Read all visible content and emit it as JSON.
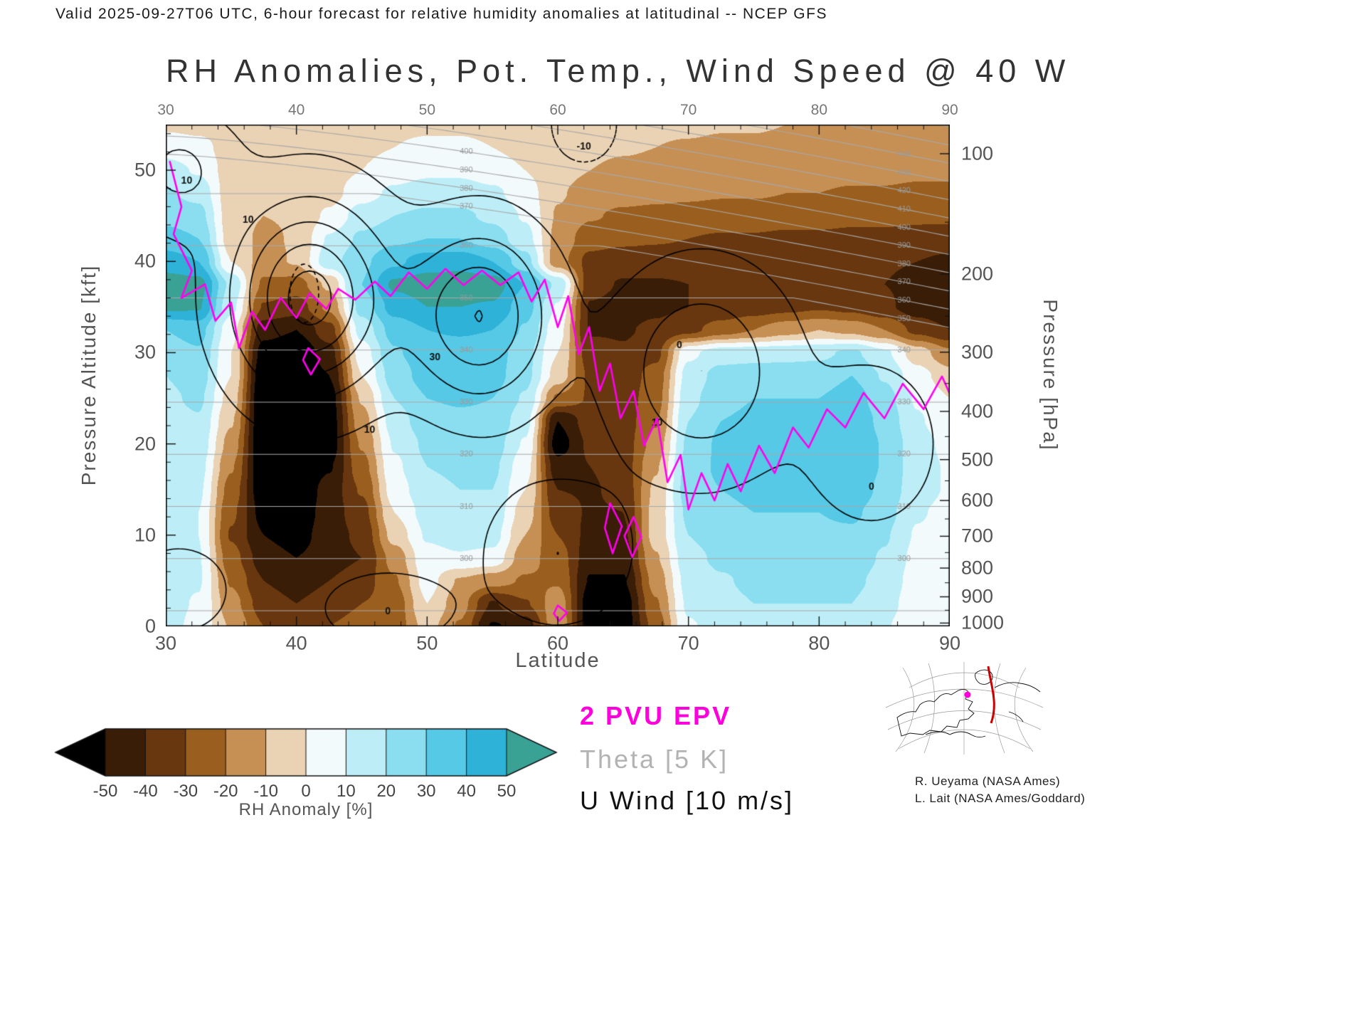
{
  "header": {
    "text": "Valid 2025-09-27T06 UTC, 6-hour forecast for relative humidity anomalies at latitudinal -- NCEP GFS"
  },
  "title": "RH Anomalies, Pot. Temp., Wind Speed @ 40 W",
  "axes": {
    "x": {
      "label": "Latitude",
      "min": 30,
      "max": 90,
      "major": [
        30,
        40,
        50,
        60,
        70,
        80,
        90
      ],
      "minor_step": 2
    },
    "y_left": {
      "label": "Pressure Altitude [kft]",
      "min": 0,
      "max": 55,
      "major": [
        0,
        10,
        20,
        30,
        40,
        50
      ],
      "minor_step": 2
    },
    "y_right": {
      "label": "Pressure [hPa]",
      "major": [
        100,
        200,
        300,
        400,
        500,
        600,
        700,
        800,
        900,
        1000
      ],
      "minor": [
        150,
        250,
        350,
        450,
        550,
        650,
        750,
        850,
        950
      ]
    }
  },
  "legend": [
    {
      "text": "2 PVU EPV",
      "color": "#ff00dd"
    },
    {
      "text": "Theta [5 K]",
      "color": "#b3b3b3"
    },
    {
      "text": "U Wind [10 m/s]",
      "color": "#111111"
    }
  ],
  "colorbar": {
    "title": "RH Anomaly [%]",
    "ticks": [
      -50,
      -40,
      -30,
      -20,
      -10,
      0,
      10,
      20,
      30,
      40,
      50
    ],
    "band_colors": [
      "#3a1d07",
      "#68370f",
      "#9a5f1e",
      "#c69055",
      "#ead2b4",
      "#f2fafc",
      "#bdeef7",
      "#8adef0",
      "#55c9e6",
      "#2eb2d8"
    ],
    "under_color": "#000000",
    "over_color": "#3aa195"
  },
  "credits": [
    "R. Ueyama (NASA Ames)",
    "L. Lait (NASA Ames/Goddard)"
  ],
  "inset_map": {
    "track_color": "#cc0000",
    "marker_color": "#ff00dd"
  },
  "chart_data": {
    "type": "heatmap",
    "title": "RH anomaly cross-section at 40 W",
    "x_lats": [
      30,
      32.5,
      35,
      37.5,
      40,
      42.5,
      45,
      47.5,
      50,
      52.5,
      55,
      57.5,
      60,
      62.5,
      65,
      67.5,
      70,
      72.5,
      75,
      77.5,
      80,
      82.5,
      85,
      87.5,
      90
    ],
    "y_kft": [
      55,
      52.5,
      50,
      47.5,
      45,
      42.5,
      40,
      37.5,
      35,
      32.5,
      30,
      27.5,
      25,
      22.5,
      20,
      17.5,
      15,
      12.5,
      10,
      7.5,
      5,
      2.5,
      0
    ],
    "rows_top_to_bottom": true,
    "value_units": "percent RH anomaly",
    "value_range_shown": [
      -50,
      50
    ],
    "rh_anomaly_grid": [
      [
        -2,
        -3,
        -4,
        -4,
        -4,
        -3,
        -3,
        -2,
        -2,
        -2,
        -3,
        -4,
        -5,
        -6,
        -7,
        -8,
        -8,
        -9,
        -9,
        -10,
        -10,
        -11,
        -11,
        -12,
        -12
      ],
      [
        6,
        3,
        -4,
        -5,
        -5,
        -4,
        -2,
        0,
        2,
        2,
        0,
        -3,
        -6,
        -8,
        -9,
        -10,
        -11,
        -12,
        -12,
        -13,
        -13,
        -14,
        -14,
        -15,
        -15
      ],
      [
        14,
        9,
        -5,
        -6,
        -6,
        -4,
        0,
        5,
        8,
        8,
        5,
        0,
        -7,
        -10,
        -12,
        -13,
        -14,
        -15,
        -15,
        -16,
        -16,
        -17,
        -17,
        -18,
        -18
      ],
      [
        21,
        17,
        -6,
        -8,
        -8,
        -4,
        6,
        12,
        15,
        15,
        12,
        5,
        -9,
        -14,
        -16,
        -17,
        -18,
        -19,
        -19,
        -20,
        -20,
        -21,
        -21,
        -22,
        -22
      ],
      [
        27,
        24,
        -6,
        -10,
        -9,
        2,
        15,
        20,
        22,
        22,
        18,
        9,
        -11,
        -19,
        -22,
        -23,
        -24,
        -25,
        -25,
        -26,
        -26,
        -27,
        -27,
        -28,
        -28
      ],
      [
        34,
        30,
        -5,
        -12,
        -9,
        11,
        22,
        28,
        30,
        30,
        25,
        14,
        -13,
        -26,
        -28,
        -29,
        -30,
        -31,
        -31,
        -32,
        -32,
        -33,
        -33,
        -34,
        -35
      ],
      [
        45,
        40,
        0,
        -14,
        -9,
        16,
        28,
        38,
        45,
        46,
        40,
        24,
        -16,
        -33,
        -35,
        -35,
        -36,
        -36,
        -37,
        -37,
        -38,
        -38,
        -39,
        -40,
        -42
      ],
      [
        55,
        54,
        18,
        -22,
        -24,
        -8,
        30,
        52,
        55,
        56,
        55,
        40,
        18,
        -36,
        -41,
        -41,
        -40,
        -38,
        -36,
        -35,
        -35,
        -37,
        -40,
        -43,
        -46
      ],
      [
        52,
        51,
        13,
        -31,
        -35,
        -18,
        24,
        44,
        50,
        50,
        49,
        34,
        9,
        -41,
        -44,
        -42,
        -40,
        -38,
        -35,
        -33,
        -31,
        -33,
        -38,
        -45,
        -50
      ],
      [
        30,
        34,
        4,
        -46,
        -50,
        -34,
        14,
        34,
        40,
        41,
        40,
        29,
        4,
        -41,
        -41,
        -38,
        -33,
        -25,
        -20,
        -14,
        -10,
        -13,
        -20,
        -33,
        -40
      ],
      [
        25,
        29,
        0,
        -55,
        -60,
        -44,
        5,
        29,
        35,
        36,
        35,
        24,
        0,
        -36,
        -39,
        -33,
        8,
        15,
        16,
        17,
        18,
        22,
        12,
        -5,
        -18
      ],
      [
        20,
        25,
        0,
        -60,
        -62,
        -50,
        0,
        25,
        34,
        35,
        34,
        23,
        -4,
        -32,
        -36,
        -26,
        14,
        24,
        25,
        25,
        25,
        30,
        19,
        4,
        -6
      ],
      [
        18,
        22,
        -4,
        -62,
        -62,
        -55,
        -9,
        20,
        30,
        31,
        30,
        19,
        -22,
        -31,
        -35,
        -24,
        17,
        27,
        30,
        30,
        30,
        35,
        24,
        9,
        0
      ],
      [
        15,
        19,
        -9,
        -62,
        -62,
        -56,
        -14,
        15,
        26,
        28,
        28,
        14,
        -50,
        -35,
        -35,
        -21,
        20,
        30,
        32,
        32,
        32,
        38,
        27,
        11,
        4
      ],
      [
        15,
        17,
        -14,
        -62,
        -62,
        -56,
        -19,
        11,
        22,
        25,
        25,
        9,
        -55,
        -38,
        -35,
        -16,
        22,
        32,
        35,
        35,
        35,
        40,
        29,
        14,
        7
      ],
      [
        12,
        14,
        -19,
        -60,
        -62,
        -51,
        -24,
        8,
        20,
        22,
        22,
        4,
        -46,
        -40,
        -35,
        -11,
        24,
        32,
        35,
        35,
        35,
        40,
        29,
        14,
        9
      ],
      [
        10,
        12,
        -24,
        -58,
        -60,
        -46,
        -29,
        5,
        17,
        20,
        20,
        0,
        -40,
        -41,
        -37,
        -8,
        25,
        30,
        32,
        33,
        32,
        38,
        27,
        14,
        9
      ],
      [
        10,
        10,
        -28,
        -54,
        -58,
        -45,
        -34,
        0,
        14,
        17,
        17,
        -5,
        -35,
        -41,
        -40,
        -6,
        22,
        28,
        30,
        30,
        30,
        32,
        24,
        11,
        7
      ],
      [
        10,
        10,
        -31,
        -50,
        -55,
        -44,
        -38,
        -6,
        11,
        14,
        14,
        -10,
        -30,
        -43,
        -42,
        -6,
        20,
        25,
        28,
        28,
        28,
        28,
        21,
        9,
        4
      ],
      [
        12,
        11,
        -26,
        -45,
        -50,
        -44,
        -40,
        -16,
        7,
        9,
        7,
        -16,
        -25,
        -46,
        -46,
        -11,
        17,
        22,
        25,
        25,
        25,
        25,
        19,
        7,
        4
      ],
      [
        14,
        11,
        -21,
        -40,
        -45,
        -40,
        -35,
        -21,
        4,
        -11,
        -16,
        -21,
        -21,
        -51,
        -51,
        -16,
        14,
        19,
        22,
        22,
        22,
        22,
        17,
        5,
        2
      ],
      [
        14,
        9,
        -16,
        -35,
        -40,
        -35,
        -30,
        -26,
        0,
        -16,
        -41,
        -31,
        -14,
        -56,
        -56,
        -21,
        12,
        17,
        20,
        20,
        20,
        20,
        14,
        4,
        1
      ],
      [
        14,
        7,
        -11,
        -30,
        -35,
        -30,
        -26,
        -26,
        -6,
        -21,
        -51,
        -46,
        -11,
        -56,
        -56,
        -26,
        9,
        14,
        17,
        17,
        17,
        17,
        11,
        2,
        0
      ]
    ],
    "overlays": {
      "epv_2pvu": {
        "color": "#ff00ee",
        "main_line": [
          [
            30.3,
            51
          ],
          [
            31.2,
            46
          ],
          [
            30.6,
            43
          ],
          [
            32,
            39
          ],
          [
            31.2,
            36
          ],
          [
            33,
            37.5
          ],
          [
            33.8,
            33.5
          ],
          [
            35,
            35.5
          ],
          [
            35.6,
            30.5
          ],
          [
            36.6,
            34.5
          ],
          [
            37.6,
            32.5
          ],
          [
            38.8,
            36
          ],
          [
            40,
            33.8
          ],
          [
            41,
            36.5
          ],
          [
            42.3,
            34.8
          ],
          [
            43.2,
            37
          ],
          [
            44.5,
            35.8
          ],
          [
            46,
            37.8
          ],
          [
            47.2,
            36.2
          ],
          [
            48.6,
            38.8
          ],
          [
            50,
            37
          ],
          [
            51.4,
            39.2
          ],
          [
            52.8,
            37.4
          ],
          [
            54.2,
            39
          ],
          [
            55.6,
            37.4
          ],
          [
            57,
            38.8
          ],
          [
            58,
            35.6
          ],
          [
            59,
            38
          ],
          [
            60,
            32.8
          ],
          [
            60.8,
            36.2
          ],
          [
            61.6,
            29.8
          ],
          [
            62.4,
            32.8
          ],
          [
            63.2,
            25.8
          ],
          [
            64,
            28.8
          ],
          [
            64.8,
            22.8
          ],
          [
            65.8,
            25.8
          ],
          [
            66.6,
            19.8
          ],
          [
            67.6,
            22.8
          ],
          [
            68.4,
            15.8
          ],
          [
            69.4,
            18.8
          ],
          [
            70,
            12.8
          ],
          [
            71,
            16.8
          ],
          [
            72,
            13.8
          ],
          [
            73,
            17.8
          ],
          [
            74,
            14.8
          ],
          [
            75.4,
            19.8
          ],
          [
            76.6,
            16.8
          ],
          [
            78,
            21.8
          ],
          [
            79.2,
            19.6
          ],
          [
            80.6,
            23.8
          ],
          [
            82,
            21.8
          ],
          [
            83.4,
            25.6
          ],
          [
            85,
            22.8
          ],
          [
            86.4,
            26.6
          ],
          [
            88,
            23.8
          ],
          [
            89.4,
            27.4
          ],
          [
            90,
            25.5
          ]
        ],
        "loops": [
          [
            [
              40.9,
              30.5
            ],
            [
              41.8,
              29.3
            ],
            [
              41.1,
              27.6
            ],
            [
              40.5,
              29.2
            ]
          ],
          [
            [
              64,
              13.5
            ],
            [
              64.9,
              11
            ],
            [
              64.2,
              8
            ],
            [
              63.6,
              10.8
            ]
          ],
          [
            [
              65.8,
              12
            ],
            [
              66.4,
              9.8
            ],
            [
              65.7,
              7.6
            ],
            [
              65.1,
              9.9
            ]
          ],
          [
            [
              60,
              2.3
            ],
            [
              60.7,
              1.5
            ],
            [
              60.1,
              0.6
            ],
            [
              59.7,
              1.4
            ]
          ]
        ]
      },
      "theta": {
        "color": "#a8a8a8",
        "label_color": "#999999",
        "levels": {
          "start": 280,
          "end": 460,
          "step": 10
        },
        "model": {
          "surface_theta": 287,
          "trop_rate": 1.75,
          "strat_rate": 5,
          "trop_z_lat30": 51,
          "trop_z_lat90": 31,
          "trop_power": 1.3
        },
        "label_lats": [
          53,
          86.5
        ]
      },
      "u_wind": {
        "color": "#000000",
        "levels": [
          0,
          10,
          20,
          30,
          40
        ],
        "dashed_levels": [
          -10
        ],
        "background": -4,
        "gaussians": [
          {
            "a": 48,
            "lat": 41,
            "z": 36,
            "slat": 5.5,
            "sz": 10
          },
          {
            "a": 34,
            "lat": 54,
            "z": 34,
            "slat": 5,
            "sz": 9
          },
          {
            "a": 24,
            "lat": 71,
            "z": 28,
            "slat": 6,
            "sz": 10
          },
          {
            "a": 14,
            "lat": 60,
            "z": 8,
            "slat": 5,
            "sz": 7
          },
          {
            "a": 12,
            "lat": 84,
            "z": 20,
            "slat": 4.5,
            "sz": 8
          },
          {
            "a": 16,
            "lat": 31,
            "z": 50,
            "slat": 4,
            "sz": 6
          },
          {
            "a": -12,
            "lat": 62,
            "z": 55,
            "slat": 3,
            "sz": 5
          },
          {
            "a": 10,
            "lat": 47,
            "z": 2,
            "slat": 5,
            "sz": 4
          },
          {
            "a": 9,
            "lat": 31,
            "z": 4,
            "slat": 4,
            "sz": 5
          }
        ],
        "dashed_ellipses": [
          {
            "lat": 40.6,
            "z": 36.5,
            "rlat": 1.1,
            "rz": 3.2
          }
        ],
        "labels": [
          {
            "t": "10",
            "lat": 31.6,
            "z": 48.8
          },
          {
            "t": "-10",
            "lat": 62,
            "z": 52.6
          },
          {
            "t": "10",
            "lat": 45.6,
            "z": 21.5
          },
          {
            "t": "30",
            "lat": 50.6,
            "z": 29.5
          },
          {
            "t": "10",
            "lat": 67.6,
            "z": 22.3
          },
          {
            "t": "0",
            "lat": 69.3,
            "z": 30.8
          },
          {
            "t": "0",
            "lat": 84,
            "z": 15.3
          },
          {
            "t": "0",
            "lat": 47,
            "z": 1.6
          },
          {
            "t": "10",
            "lat": 36.3,
            "z": 44.5
          }
        ]
      }
    }
  }
}
